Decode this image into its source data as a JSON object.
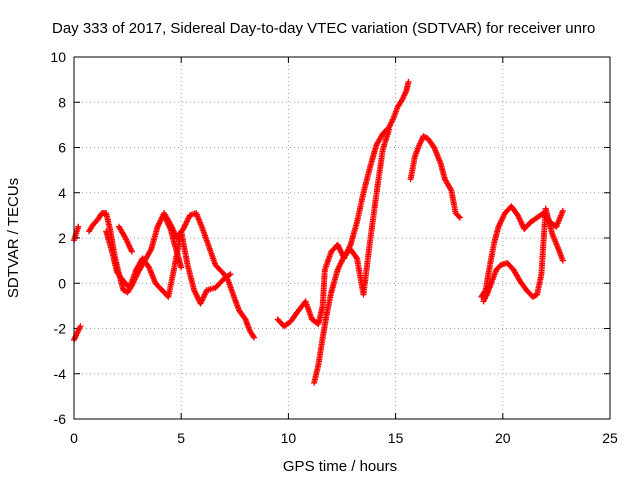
{
  "chart_data": {
    "type": "scatter",
    "title": "Day 333 of 2017, Sidereal Day-to-day VTEC variation (SDTVAR) for receiver unro",
    "xlabel": "GPS time / hours",
    "ylabel": "SDTVAR / TECUs",
    "xlim": [
      0,
      25
    ],
    "ylim": [
      -6,
      10
    ],
    "xticks": [
      0,
      5,
      10,
      15,
      20,
      25
    ],
    "yticks": [
      -6,
      -4,
      -2,
      0,
      2,
      4,
      6,
      8,
      10
    ],
    "grid": true,
    "marker": "+",
    "color": "#ff0000",
    "series": [
      {
        "name": "s1",
        "x": [
          0.0,
          0.1,
          0.2,
          0.3
        ],
        "y": [
          -2.5,
          -2.3,
          -2.1,
          -1.9
        ]
      },
      {
        "name": "s2",
        "x": [
          0.0,
          0.1,
          0.2
        ],
        "y": [
          1.9,
          2.2,
          2.5
        ]
      },
      {
        "name": "s3",
        "x": [
          0.7,
          0.9,
          1.1,
          1.3,
          1.5,
          1.7,
          1.9,
          2.1,
          2.3,
          2.5,
          2.7,
          3.0,
          3.3,
          3.6,
          3.9,
          4.2,
          4.5,
          4.8,
          5.1,
          5.4,
          5.7,
          6.0,
          6.3,
          6.6,
          7.0,
          7.2,
          7.5,
          7.7,
          8.0,
          8.2,
          8.4
        ],
        "y": [
          2.3,
          2.6,
          2.8,
          3.1,
          3.1,
          2.3,
          1.2,
          0.4,
          -0.3,
          -0.4,
          -0.1,
          0.5,
          1.0,
          1.5,
          2.5,
          3.1,
          2.6,
          2.0,
          2.4,
          3.0,
          3.1,
          2.4,
          1.6,
          0.8,
          0.4,
          0.1,
          -0.7,
          -1.2,
          -1.6,
          -2.1,
          -2.4
        ]
      },
      {
        "name": "s4",
        "x": [
          1.5,
          1.8,
          2.0,
          2.3,
          2.6,
          2.9,
          3.2,
          3.5,
          3.8,
          4.1,
          4.4,
          4.7,
          5.0,
          5.3,
          5.6,
          5.9,
          6.2,
          6.6,
          7.0,
          7.3
        ],
        "y": [
          2.3,
          1.3,
          0.5,
          0.1,
          -0.2,
          0.6,
          1.1,
          0.7,
          0.0,
          -0.3,
          -0.6,
          0.8,
          2.3,
          0.8,
          -0.3,
          -0.9,
          -0.3,
          -0.2,
          0.2,
          0.4
        ]
      },
      {
        "name": "s5",
        "x": [
          2.1,
          2.4,
          2.7
        ],
        "y": [
          2.5,
          2.0,
          1.4
        ]
      },
      {
        "name": "s6",
        "x": [
          4.2,
          4.5,
          4.7,
          5.0
        ],
        "y": [
          3.0,
          2.4,
          1.7,
          0.7
        ]
      },
      {
        "name": "s7",
        "x": [
          9.5,
          9.8,
          10.1,
          10.4,
          10.8,
          11.1,
          11.4,
          11.6,
          11.7,
          12.0,
          12.3,
          12.6,
          12.9,
          13.2,
          13.5,
          13.8,
          14.1,
          14.4,
          14.7,
          14.9,
          15.1,
          15.3,
          15.5,
          15.6
        ],
        "y": [
          -1.6,
          -1.9,
          -1.7,
          -1.3,
          -0.8,
          -1.6,
          -1.8,
          -1.0,
          0.6,
          1.4,
          1.7,
          1.1,
          1.7,
          2.7,
          4.0,
          5.1,
          6.1,
          6.6,
          6.9,
          7.3,
          7.8,
          8.1,
          8.5,
          8.9
        ]
      },
      {
        "name": "s8",
        "x": [
          11.2,
          11.4,
          11.6,
          11.8,
          12.0,
          12.3,
          12.6,
          12.9,
          13.2,
          13.5,
          13.8,
          14.1,
          14.4,
          14.7
        ],
        "y": [
          -4.4,
          -3.6,
          -2.4,
          -1.3,
          -0.4,
          0.6,
          1.2,
          1.5,
          1.1,
          -0.5,
          1.8,
          3.9,
          5.9,
          6.8
        ]
      },
      {
        "name": "s9",
        "x": [
          15.7,
          15.9,
          16.1,
          16.3,
          16.5,
          16.8,
          17.1,
          17.3,
          17.6,
          17.8,
          18.0
        ],
        "y": [
          4.6,
          5.6,
          6.1,
          6.5,
          6.4,
          6.0,
          5.3,
          4.6,
          4.1,
          3.1,
          2.9
        ]
      },
      {
        "name": "s10",
        "x": [
          19.0,
          19.2,
          19.4,
          19.6,
          19.8,
          20.1,
          20.4,
          20.7,
          21.0,
          21.3,
          21.6,
          21.9,
          22.2,
          22.5,
          22.8
        ],
        "y": [
          -0.6,
          -0.3,
          0.8,
          1.8,
          2.5,
          3.1,
          3.4,
          3.0,
          2.4,
          2.7,
          2.9,
          3.1,
          2.7,
          2.5,
          3.2
        ]
      },
      {
        "name": "s11",
        "x": [
          19.1,
          19.3,
          19.5,
          19.7,
          19.9,
          20.2,
          20.5,
          20.8,
          21.1,
          21.4,
          21.6,
          21.8,
          22.0,
          22.3,
          22.6,
          22.8
        ],
        "y": [
          -0.8,
          -0.4,
          0.1,
          0.6,
          0.8,
          0.9,
          0.6,
          0.1,
          -0.3,
          -0.6,
          -0.5,
          0.4,
          3.3,
          2.2,
          1.5,
          1.0
        ]
      }
    ]
  }
}
